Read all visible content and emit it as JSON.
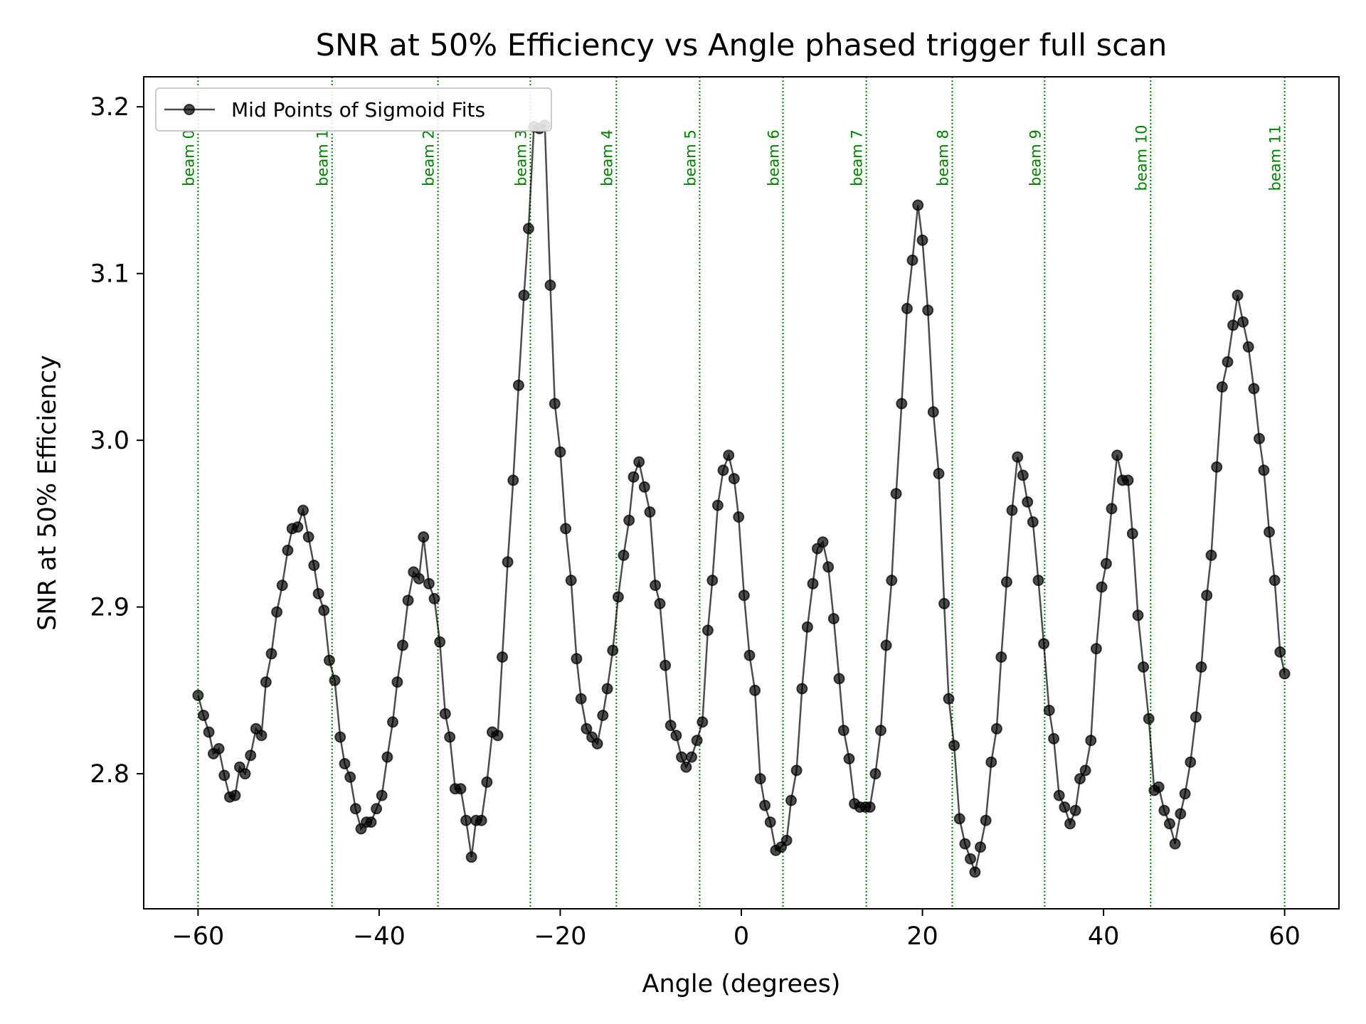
{
  "chart_data": {
    "type": "line",
    "title": "SNR at 50% Efficiency vs Angle phased trigger full scan",
    "xlabel": "Angle (degrees)",
    "ylabel": "SNR at 50% Efficiency",
    "xlim": [
      -66,
      66
    ],
    "ylim": [
      2.719,
      3.218
    ],
    "xticks": [
      -60,
      -40,
      -20,
      0,
      20,
      40,
      60
    ],
    "xtick_labels": [
      "−60",
      "−40",
      "−20",
      "0",
      "20",
      "40",
      "60"
    ],
    "yticks": [
      2.8,
      2.9,
      3.0,
      3.1,
      3.2
    ],
    "ytick_labels": [
      "2.8",
      "2.9",
      "3.0",
      "3.1",
      "3.2"
    ],
    "grid": false,
    "legend": {
      "placement": "top-left",
      "entries": [
        "Mid Points of Sigmoid Fits"
      ]
    },
    "beams": [
      {
        "label": "beam 0",
        "angle": -60.0
      },
      {
        "label": "beam 1",
        "angle": -45.2
      },
      {
        "label": "beam 2",
        "angle": -33.5
      },
      {
        "label": "beam 3",
        "angle": -23.3
      },
      {
        "label": "beam 4",
        "angle": -13.8
      },
      {
        "label": "beam 5",
        "angle": -4.6
      },
      {
        "label": "beam 6",
        "angle": 4.6
      },
      {
        "label": "beam 7",
        "angle": 13.8
      },
      {
        "label": "beam 8",
        "angle": 23.3
      },
      {
        "label": "beam 9",
        "angle": 33.5
      },
      {
        "label": "beam 10",
        "angle": 45.2
      },
      {
        "label": "beam 11",
        "angle": 60.0
      }
    ],
    "series": [
      {
        "name": "Mid Points of Sigmoid Fits",
        "color": "#000000",
        "points": [
          [
            -60.0,
            2.847
          ],
          [
            -59.4,
            2.835
          ],
          [
            -58.8,
            2.825
          ],
          [
            -58.3,
            2.812
          ],
          [
            -57.7,
            2.815
          ],
          [
            -57.1,
            2.799
          ],
          [
            -56.5,
            2.786
          ],
          [
            -55.9,
            2.787
          ],
          [
            -55.4,
            2.804
          ],
          [
            -54.8,
            2.8
          ],
          [
            -54.2,
            2.811
          ],
          [
            -53.6,
            2.827
          ],
          [
            -53.0,
            2.823
          ],
          [
            -52.5,
            2.855
          ],
          [
            -51.9,
            2.872
          ],
          [
            -51.3,
            2.897
          ],
          [
            -50.7,
            2.913
          ],
          [
            -50.1,
            2.934
          ],
          [
            -49.6,
            2.947
          ],
          [
            -49.0,
            2.948
          ],
          [
            -48.4,
            2.958
          ],
          [
            -47.8,
            2.942
          ],
          [
            -47.2,
            2.925
          ],
          [
            -46.7,
            2.908
          ],
          [
            -46.1,
            2.898
          ],
          [
            -45.5,
            2.868
          ],
          [
            -44.9,
            2.856
          ],
          [
            -44.3,
            2.822
          ],
          [
            -43.8,
            2.806
          ],
          [
            -43.2,
            2.798
          ],
          [
            -42.6,
            2.779
          ],
          [
            -42.0,
            2.767
          ],
          [
            -41.4,
            2.771
          ],
          [
            -40.9,
            2.771
          ],
          [
            -40.3,
            2.779
          ],
          [
            -39.7,
            2.787
          ],
          [
            -39.1,
            2.81
          ],
          [
            -38.5,
            2.831
          ],
          [
            -38.0,
            2.855
          ],
          [
            -37.4,
            2.877
          ],
          [
            -36.8,
            2.904
          ],
          [
            -36.2,
            2.921
          ],
          [
            -35.6,
            2.917
          ],
          [
            -35.1,
            2.942
          ],
          [
            -34.5,
            2.914
          ],
          [
            -33.9,
            2.905
          ],
          [
            -33.3,
            2.879
          ],
          [
            -32.7,
            2.836
          ],
          [
            -32.2,
            2.822
          ],
          [
            -31.6,
            2.791
          ],
          [
            -31.0,
            2.791
          ],
          [
            -30.4,
            2.772
          ],
          [
            -29.8,
            2.75
          ],
          [
            -29.3,
            2.772
          ],
          [
            -28.7,
            2.772
          ],
          [
            -28.1,
            2.795
          ],
          [
            -27.5,
            2.825
          ],
          [
            -26.9,
            2.823
          ],
          [
            -26.4,
            2.87
          ],
          [
            -25.8,
            2.927
          ],
          [
            -25.2,
            2.976
          ],
          [
            -24.6,
            3.033
          ],
          [
            -24.0,
            3.087
          ],
          [
            -23.5,
            3.127
          ],
          [
            -22.9,
            3.188
          ],
          [
            -22.3,
            3.187
          ],
          [
            -21.7,
            3.189
          ],
          [
            -21.1,
            3.093
          ],
          [
            -20.6,
            3.022
          ],
          [
            -20.0,
            2.993
          ],
          [
            -19.4,
            2.947
          ],
          [
            -18.8,
            2.916
          ],
          [
            -18.2,
            2.869
          ],
          [
            -17.7,
            2.845
          ],
          [
            -17.1,
            2.827
          ],
          [
            -16.5,
            2.822
          ],
          [
            -15.9,
            2.818
          ],
          [
            -15.3,
            2.835
          ],
          [
            -14.8,
            2.851
          ],
          [
            -14.2,
            2.874
          ],
          [
            -13.6,
            2.906
          ],
          [
            -13.0,
            2.931
          ],
          [
            -12.4,
            2.952
          ],
          [
            -11.9,
            2.978
          ],
          [
            -11.3,
            2.987
          ],
          [
            -10.7,
            2.972
          ],
          [
            -10.1,
            2.957
          ],
          [
            -9.5,
            2.913
          ],
          [
            -9.0,
            2.902
          ],
          [
            -8.4,
            2.865
          ],
          [
            -7.8,
            2.829
          ],
          [
            -7.2,
            2.823
          ],
          [
            -6.6,
            2.81
          ],
          [
            -6.1,
            2.804
          ],
          [
            -5.5,
            2.81
          ],
          [
            -4.9,
            2.82
          ],
          [
            -4.3,
            2.831
          ],
          [
            -3.7,
            2.886
          ],
          [
            -3.2,
            2.916
          ],
          [
            -2.6,
            2.961
          ],
          [
            -2.0,
            2.982
          ],
          [
            -1.4,
            2.991
          ],
          [
            -0.8,
            2.977
          ],
          [
            -0.3,
            2.954
          ],
          [
            0.3,
            2.907
          ],
          [
            0.9,
            2.871
          ],
          [
            1.5,
            2.85
          ],
          [
            2.1,
            2.797
          ],
          [
            2.6,
            2.781
          ],
          [
            3.2,
            2.771
          ],
          [
            3.8,
            2.754
          ],
          [
            4.4,
            2.756
          ],
          [
            5.0,
            2.76
          ],
          [
            5.5,
            2.784
          ],
          [
            6.1,
            2.802
          ],
          [
            6.7,
            2.851
          ],
          [
            7.3,
            2.888
          ],
          [
            7.9,
            2.914
          ],
          [
            8.4,
            2.935
          ],
          [
            9.0,
            2.939
          ],
          [
            9.6,
            2.924
          ],
          [
            10.2,
            2.893
          ],
          [
            10.8,
            2.857
          ],
          [
            11.3,
            2.826
          ],
          [
            11.9,
            2.809
          ],
          [
            12.5,
            2.782
          ],
          [
            13.1,
            2.78
          ],
          [
            13.7,
            2.78
          ],
          [
            14.2,
            2.78
          ],
          [
            14.8,
            2.8
          ],
          [
            15.4,
            2.826
          ],
          [
            16.0,
            2.877
          ],
          [
            16.6,
            2.916
          ],
          [
            17.1,
            2.968
          ],
          [
            17.7,
            3.022
          ],
          [
            18.3,
            3.079
          ],
          [
            18.9,
            3.108
          ],
          [
            19.5,
            3.141
          ],
          [
            20.0,
            3.12
          ],
          [
            20.6,
            3.078
          ],
          [
            21.2,
            3.017
          ],
          [
            21.8,
            2.98
          ],
          [
            22.4,
            2.902
          ],
          [
            22.9,
            2.845
          ],
          [
            23.5,
            2.817
          ],
          [
            24.1,
            2.773
          ],
          [
            24.7,
            2.758
          ],
          [
            25.3,
            2.749
          ],
          [
            25.8,
            2.741
          ],
          [
            26.4,
            2.756
          ],
          [
            27.0,
            2.772
          ],
          [
            27.6,
            2.807
          ],
          [
            28.2,
            2.827
          ],
          [
            28.7,
            2.87
          ],
          [
            29.3,
            2.915
          ],
          [
            29.9,
            2.958
          ],
          [
            30.5,
            2.99
          ],
          [
            31.1,
            2.979
          ],
          [
            31.6,
            2.963
          ],
          [
            32.2,
            2.951
          ],
          [
            32.8,
            2.916
          ],
          [
            33.4,
            2.878
          ],
          [
            34.0,
            2.838
          ],
          [
            34.5,
            2.821
          ],
          [
            35.1,
            2.787
          ],
          [
            35.7,
            2.78
          ],
          [
            36.3,
            2.77
          ],
          [
            36.9,
            2.778
          ],
          [
            37.4,
            2.797
          ],
          [
            38.0,
            2.802
          ],
          [
            38.6,
            2.82
          ],
          [
            39.2,
            2.875
          ],
          [
            39.8,
            2.912
          ],
          [
            40.3,
            2.926
          ],
          [
            40.9,
            2.959
          ],
          [
            41.5,
            2.991
          ],
          [
            42.1,
            2.976
          ],
          [
            42.7,
            2.976
          ],
          [
            43.2,
            2.944
          ],
          [
            43.8,
            2.895
          ],
          [
            44.4,
            2.864
          ],
          [
            45.0,
            2.833
          ],
          [
            45.6,
            2.79
          ],
          [
            46.1,
            2.792
          ],
          [
            46.7,
            2.778
          ],
          [
            47.3,
            2.77
          ],
          [
            47.9,
            2.758
          ],
          [
            48.5,
            2.776
          ],
          [
            49.0,
            2.788
          ],
          [
            49.6,
            2.807
          ],
          [
            50.2,
            2.834
          ],
          [
            50.8,
            2.864
          ],
          [
            51.4,
            2.907
          ],
          [
            51.9,
            2.931
          ],
          [
            52.5,
            2.984
          ],
          [
            53.1,
            3.032
          ],
          [
            53.7,
            3.047
          ],
          [
            54.3,
            3.069
          ],
          [
            54.8,
            3.087
          ],
          [
            55.4,
            3.071
          ],
          [
            56.0,
            3.056
          ],
          [
            56.6,
            3.031
          ],
          [
            57.2,
            3.001
          ],
          [
            57.7,
            2.982
          ],
          [
            58.3,
            2.945
          ],
          [
            58.9,
            2.916
          ],
          [
            59.5,
            2.873
          ],
          [
            60.0,
            2.86
          ]
        ]
      }
    ]
  }
}
